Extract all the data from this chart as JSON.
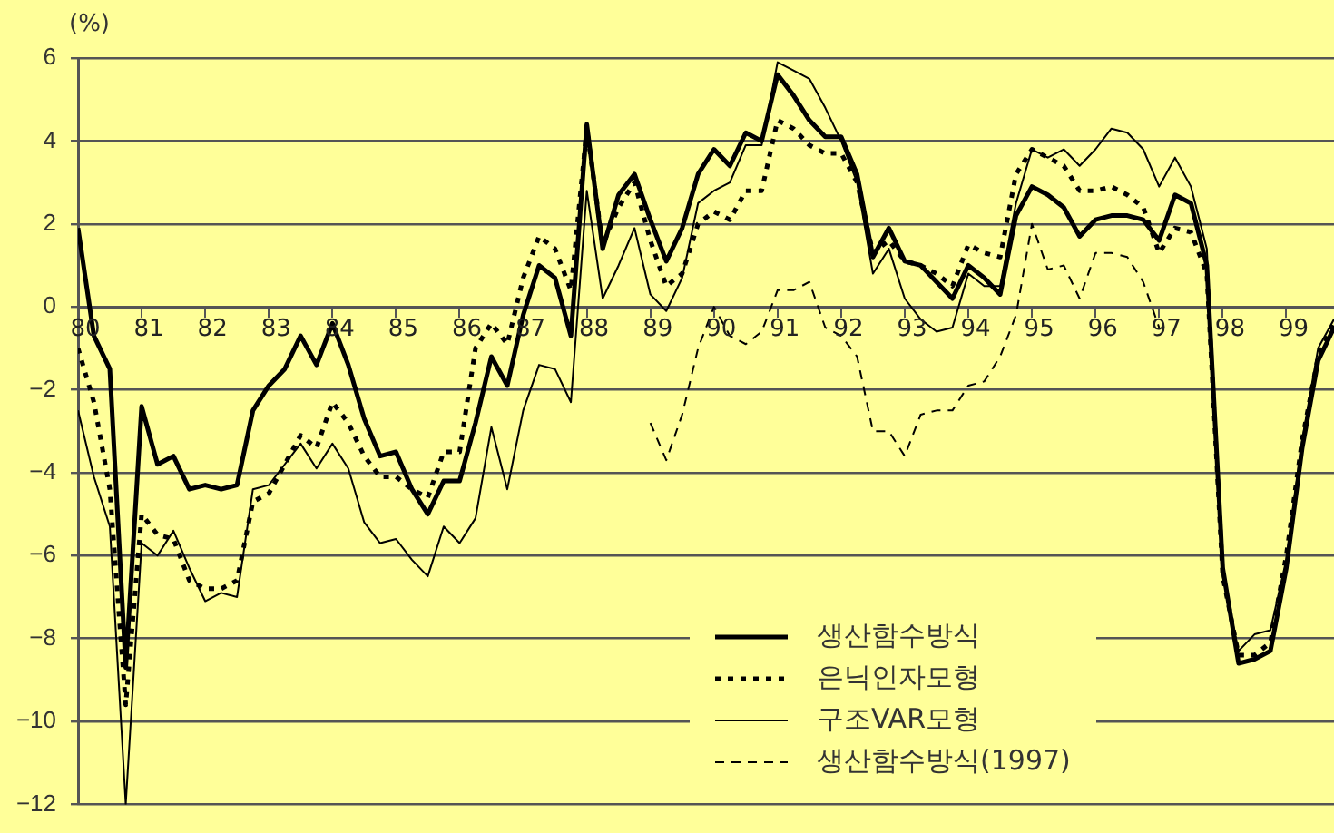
{
  "chart_data": {
    "type": "line",
    "ylabel": "(%)",
    "x": [
      1980,
      1980.25,
      1980.5,
      1980.75,
      1981,
      1981.25,
      1981.5,
      1981.75,
      1982,
      1982.25,
      1982.5,
      1982.75,
      1983,
      1983.25,
      1983.5,
      1983.75,
      1984,
      1984.25,
      1984.5,
      1984.75,
      1985,
      1985.25,
      1985.5,
      1985.75,
      1986,
      1986.25,
      1986.5,
      1986.75,
      1987,
      1987.25,
      1987.5,
      1987.75,
      1988,
      1988.25,
      1988.5,
      1988.75,
      1989,
      1989.25,
      1989.5,
      1989.75,
      1990,
      1990.25,
      1990.5,
      1990.75,
      1991,
      1991.25,
      1991.5,
      1991.75,
      1992,
      1992.25,
      1992.5,
      1992.75,
      1993,
      1993.25,
      1993.5,
      1993.75,
      1994,
      1994.25,
      1994.5,
      1994.75,
      1995,
      1995.25,
      1995.5,
      1995.75,
      1996,
      1996.25,
      1996.5,
      1996.75,
      1997,
      1997.25,
      1997.5,
      1997.75,
      1998,
      1998.25,
      1998.5,
      1998.75,
      1999,
      1999.25,
      1999.5,
      1999.75
    ],
    "series": [
      {
        "name": "생산함수방식",
        "color": "#000000",
        "line_style": "solid",
        "values": [
          1.9,
          -0.7,
          -1.5,
          -8.7,
          -2.4,
          -3.8,
          -3.6,
          -4.4,
          -4.3,
          -4.4,
          -4.3,
          -2.5,
          -1.9,
          -1.5,
          -0.7,
          -1.4,
          -0.4,
          -1.4,
          -2.7,
          -3.6,
          -3.5,
          -4.4,
          -5.0,
          -4.2,
          -4.2,
          -2.8,
          -1.2,
          -1.9,
          -0.2,
          1.0,
          0.7,
          -0.7,
          4.4,
          1.4,
          2.7,
          3.2,
          2.1,
          1.1,
          1.9,
          3.2,
          3.8,
          3.4,
          4.2,
          4.0,
          5.6,
          5.1,
          4.5,
          4.1,
          4.1,
          3.2,
          1.2,
          1.9,
          1.1,
          1.0,
          0.6,
          0.2,
          1.0,
          0.7,
          0.3,
          2.2,
          2.9,
          2.7,
          2.4,
          1.7,
          2.1,
          2.2,
          2.2,
          2.1,
          1.6,
          2.7,
          2.5,
          1.0,
          -6.3,
          -8.6,
          -8.5,
          -8.3,
          -6.3,
          -3.4,
          -1.3,
          -0.5
        ]
      },
      {
        "name": "은닉인자모형",
        "color": "#000000",
        "line_style": "dotted",
        "values": [
          -1.0,
          -2.3,
          -4.4,
          -9.6,
          -5.0,
          -5.5,
          -5.6,
          -6.6,
          -6.8,
          -6.8,
          -6.6,
          -4.7,
          -4.5,
          -3.8,
          -3.1,
          -3.4,
          -2.3,
          -2.8,
          -3.6,
          -4.1,
          -4.1,
          -4.4,
          -4.6,
          -3.5,
          -3.5,
          -1.0,
          -0.4,
          -0.9,
          0.7,
          1.7,
          1.4,
          0.4,
          4.3,
          1.5,
          2.4,
          3.0,
          1.6,
          0.5,
          0.8,
          2.0,
          2.3,
          2.1,
          2.8,
          2.8,
          4.5,
          4.3,
          3.9,
          3.7,
          3.7,
          3.0,
          1.3,
          1.6,
          1.1,
          1.0,
          0.8,
          0.5,
          1.5,
          1.3,
          1.2,
          3.2,
          3.8,
          3.6,
          3.4,
          2.8,
          2.8,
          2.9,
          2.7,
          2.4,
          1.3,
          1.9,
          1.8,
          0.8,
          -6.5,
          -8.4,
          -8.4,
          -8.1,
          -6.0,
          -3.2,
          -1.2,
          -0.4
        ]
      },
      {
        "name": "구조VAR모형",
        "color": "#000000",
        "line_style": "solid",
        "values": [
          -2.5,
          -4.1,
          -5.3,
          -12.0,
          -5.7,
          -6.0,
          -5.4,
          -6.3,
          -7.1,
          -6.9,
          -7.0,
          -4.4,
          -4.3,
          -3.8,
          -3.3,
          -3.9,
          -3.3,
          -3.9,
          -5.2,
          -5.7,
          -5.6,
          -6.1,
          -6.5,
          -5.3,
          -5.7,
          -5.1,
          -2.9,
          -4.4,
          -2.5,
          -1.4,
          -1.5,
          -2.3,
          2.8,
          0.2,
          1.0,
          1.9,
          0.3,
          -0.1,
          0.7,
          2.5,
          2.8,
          3.0,
          3.9,
          3.9,
          5.9,
          5.7,
          5.5,
          4.8,
          4.0,
          3.0,
          0.8,
          1.4,
          0.2,
          -0.3,
          -0.6,
          -0.5,
          0.8,
          0.5,
          0.5,
          2.5,
          3.8,
          3.6,
          3.8,
          3.4,
          3.8,
          4.3,
          4.2,
          3.8,
          2.9,
          3.6,
          2.9,
          1.4,
          -6.5,
          -8.3,
          -7.9,
          -7.8,
          -6.1,
          -3.2,
          -1.0,
          -0.3
        ]
      },
      {
        "name": "생산함수방식(1997)",
        "color": "#000000",
        "line_style": "dashed",
        "values": [
          null,
          null,
          null,
          null,
          null,
          null,
          null,
          null,
          null,
          null,
          null,
          null,
          null,
          null,
          null,
          null,
          null,
          null,
          null,
          null,
          null,
          null,
          null,
          null,
          null,
          null,
          null,
          null,
          null,
          null,
          null,
          null,
          null,
          null,
          null,
          null,
          -2.8,
          -3.7,
          -2.6,
          -1.0,
          0.0,
          -0.7,
          -0.9,
          -0.6,
          0.4,
          0.4,
          0.6,
          -0.5,
          -0.7,
          -1.2,
          -3.0,
          -3.0,
          -3.6,
          -2.6,
          -2.5,
          -2.5,
          -1.9,
          -1.8,
          -1.2,
          -0.2,
          2.0,
          0.9,
          1.0,
          0.2,
          1.3,
          1.3,
          1.2,
          0.6,
          -0.5,
          null,
          null,
          null,
          null,
          null,
          null,
          null,
          null,
          null,
          null,
          null
        ]
      }
    ],
    "xlim": [
      1980,
      1999.75
    ],
    "xticks": [
      {
        "value": 1980,
        "label": "80"
      },
      {
        "value": 1981,
        "label": "81"
      },
      {
        "value": 1982,
        "label": "82"
      },
      {
        "value": 1983,
        "label": "83"
      },
      {
        "value": 1984,
        "label": "84"
      },
      {
        "value": 1985,
        "label": "85"
      },
      {
        "value": 1986,
        "label": "86"
      },
      {
        "value": 1987,
        "label": "87"
      },
      {
        "value": 1988,
        "label": "88"
      },
      {
        "value": 1989,
        "label": "89"
      },
      {
        "value": 1990,
        "label": "90"
      },
      {
        "value": 1991,
        "label": "91"
      },
      {
        "value": 1992,
        "label": "92"
      },
      {
        "value": 1993,
        "label": "93"
      },
      {
        "value": 1994,
        "label": "94"
      },
      {
        "value": 1995,
        "label": "95"
      },
      {
        "value": 1996,
        "label": "96"
      },
      {
        "value": 1997,
        "label": "97"
      },
      {
        "value": 1998,
        "label": "98"
      },
      {
        "value": 1999,
        "label": "99"
      }
    ],
    "ylim": [
      -12,
      6
    ],
    "yticks": [
      -12,
      -10,
      -8,
      -6,
      -4,
      -2,
      0,
      2,
      4,
      6
    ],
    "grid": "y",
    "legend": "bottom right",
    "marker": "none"
  }
}
